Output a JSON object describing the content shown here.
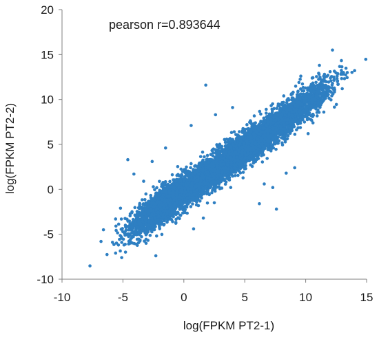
{
  "chart_data": {
    "type": "scatter",
    "annotation": "pearson r=0.893644",
    "xlabel": "log(FPKM PT2-1)",
    "ylabel": "log(FPKM PT2-2)",
    "xlim": [
      -10,
      15
    ],
    "ylim": [
      -10,
      20
    ],
    "x_ticks": [
      "-10",
      "-5",
      "0",
      "5",
      "10",
      "15"
    ],
    "y_ticks": [
      "-10",
      "-5",
      "0",
      "5",
      "10",
      "15",
      "20"
    ],
    "grid": false,
    "legend": "none",
    "marker_color": "#2E7FC2",
    "points": [
      [
        12.2,
        15.5
      ],
      [
        13.1,
        13.0
      ],
      [
        12.9,
        12.8
      ],
      [
        13.0,
        11.2
      ],
      [
        1.8,
        11.6
      ],
      [
        -6.6,
        -4.5
      ],
      [
        -6.8,
        -5.8
      ],
      [
        -5.6,
        -7.1
      ],
      [
        -5.1,
        -7.6
      ],
      [
        -2.3,
        -7.4
      ],
      [
        -4.6,
        3.3
      ],
      [
        -4.1,
        1.7
      ],
      [
        -4.8,
        -4.0
      ],
      [
        -3.9,
        -6.1
      ],
      [
        0.8,
        -4.4
      ],
      [
        1.6,
        -3.2
      ],
      [
        2.5,
        -1.5
      ],
      [
        6.6,
        0.6
      ],
      [
        7.6,
        -2.2
      ],
      [
        8.4,
        1.8
      ],
      [
        9.1,
        2.4
      ],
      [
        10.2,
        6.2
      ],
      [
        11.0,
        9.6
      ],
      [
        11.4,
        12.1
      ],
      [
        9.6,
        12.6
      ],
      [
        8.2,
        10.4
      ],
      [
        4.0,
        9.1
      ],
      [
        2.6,
        8.3
      ],
      [
        0.6,
        7.1
      ],
      [
        -1.5,
        4.6
      ],
      [
        -2.6,
        3.1
      ],
      [
        -3.3,
        0.9
      ],
      [
        -5.2,
        -2.1
      ],
      [
        -5.6,
        -3.3
      ],
      [
        -4.4,
        -5.6
      ],
      [
        -3.1,
        -6.0
      ],
      [
        6.2,
        -1.6
      ],
      [
        7.3,
        0.2
      ],
      [
        10.6,
        7.4
      ],
      [
        12.6,
        12.0
      ]
    ]
  }
}
